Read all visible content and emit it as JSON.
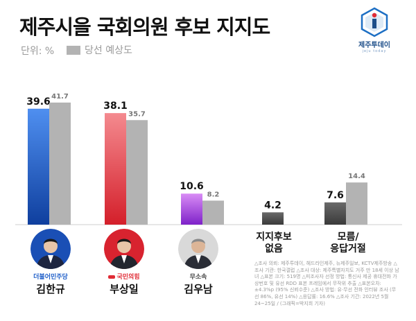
{
  "header": {
    "title": "제주시을 국회의원 후보 지지도",
    "unit_label": "단위: %",
    "legend_label": "당선 예상도"
  },
  "logo": {
    "name": "제주투데이",
    "sub": "jeju today"
  },
  "colors": {
    "forecast": "#b3b3b3",
    "democratic": "#1f5fc9",
    "peoplepower": "#e02b35",
    "independent": "#9b3ad6",
    "undecided": "#555555"
  },
  "chart_data": {
    "type": "bar",
    "categories": [
      "김한규",
      "부상일",
      "김우남",
      "지지후보 없음",
      "모름/ 응답거절"
    ],
    "series": [
      {
        "values": [
          39.6,
          38.1,
          10.6,
          4.2,
          7.6
        ]
      },
      {
        "name": "당선 예상도",
        "values": [
          41.7,
          35.7,
          8.2,
          null,
          14.4
        ]
      }
    ],
    "value_labels": {
      "support": [
        "39.6",
        "38.1",
        "10.6",
        "4.2",
        "7.6"
      ],
      "forecast": [
        "41.7",
        "35.7",
        "8.2",
        "",
        "14.4"
      ]
    },
    "ylim": [
      0,
      45
    ],
    "grid": false,
    "legend": "top-left"
  },
  "candidates": [
    {
      "name": "김한규",
      "party": "더불어민주당",
      "party_color": "#1f5fc9"
    },
    {
      "name": "부상일",
      "party": "국민의힘",
      "party_color": "#e02b35"
    },
    {
      "name": "김우남",
      "party": "무소속",
      "party_color": "#444444"
    }
  ],
  "others": {
    "none": "지지후보 없음",
    "none_line1": "지지후보",
    "none_line2": "없음",
    "unknown_line1": "모름/",
    "unknown_line2": "응답거절"
  },
  "note": "△조사 의뢰: 제주투데이, 헤드라인제주, 뉴제주일보, KCTV제주방송 △조사 기관: 한국갤럽 △조사 대상: 제주특별자치도 거주 만 18세 이상 남녀 △표본 크기: 519명 △피조사자 선정 방법: 통신사 제공 휴대전화 가상번호 및 유선 RDD 표본 프레임에서 무작위 추출 △표본오차: ±4.3%p (95% 신뢰수준) △조사 방법: 유·무선 전화 인터뷰 조사 (무선 86%, 유선 14%) △응답률: 16.6% △조사 기간: 2022년 5월 24~25일 / (그래픽=박지희 기자)"
}
